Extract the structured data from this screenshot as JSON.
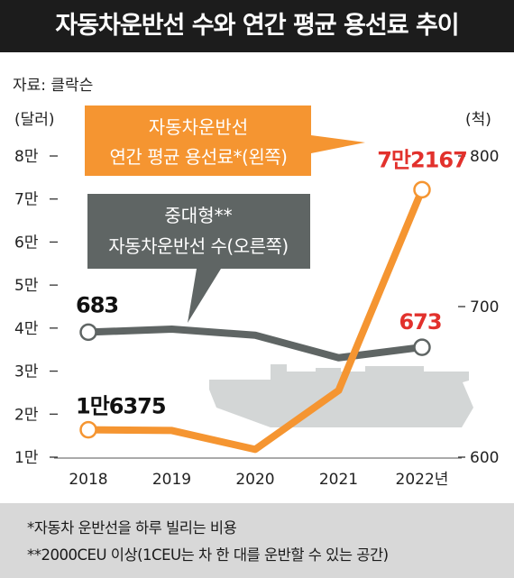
{
  "title": "자동차운반선 수와 연간 평균 용선료 추이",
  "source": "자료: 클락슨",
  "footnotes": [
    "*자동차 운반선을 하루 빌리는 비용",
    "**2000CEU 이상(1CEU는 차 한 대를 운반할 수 있는 공간)"
  ],
  "colors": {
    "title_bg": "#1c1c1c",
    "charter_rate": "#f59531",
    "ship_count": "#5f6564",
    "highlight_label": "#e2312c",
    "ship_silhouette": "#d3d6d6",
    "footnote_bg": "#d8d8d8"
  },
  "icons": [
    "car-carrier-ship-silhouette"
  ],
  "chart_data": {
    "type": "line",
    "x": [
      "2018",
      "2019",
      "2020",
      "2021",
      "2022"
    ],
    "x_unit": "년",
    "left_axis": {
      "unit": "(달러)",
      "ticks": [
        "1만",
        "2만",
        "3만",
        "4만",
        "5만",
        "6만",
        "7만",
        "8만"
      ],
      "range": [
        10000,
        80000
      ]
    },
    "right_axis": {
      "unit": "(척)",
      "ticks": [
        "600",
        "700",
        "800"
      ],
      "range": [
        600,
        800
      ]
    },
    "series": [
      {
        "name_lines": [
          "자동차운반선",
          "연간 평균 용선료*(왼쪽)"
        ],
        "axis": "left",
        "values": [
          16375,
          16200,
          11800,
          25500,
          72167
        ],
        "labels": [
          {
            "index": 0,
            "text": "1만6375"
          },
          {
            "index": 4,
            "text": "7만2167"
          }
        ]
      },
      {
        "name_lines": [
          "중대형**",
          "자동차운반선 수(오른쪽)"
        ],
        "axis": "right",
        "values": [
          683,
          685,
          681,
          666,
          673
        ],
        "labels": [
          {
            "index": 0,
            "text": "683"
          },
          {
            "index": 4,
            "text": "673"
          }
        ]
      }
    ],
    "grid": false
  }
}
